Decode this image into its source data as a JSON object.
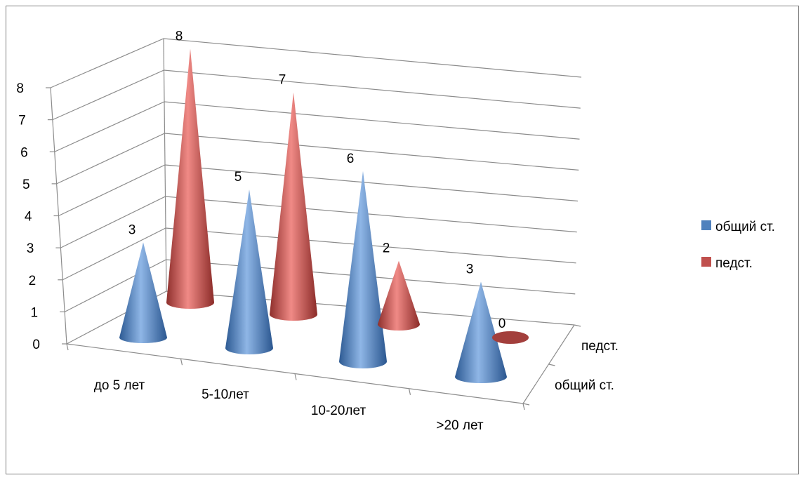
{
  "chart_data": {
    "type": "bar",
    "subtype": "3d-cone",
    "categories": [
      "до 5 лет",
      "5-10лет",
      "10-20лет",
      ">20 лет"
    ],
    "series": [
      {
        "name": "общий ст.",
        "values": [
          3,
          5,
          6,
          3
        ],
        "color": "#4f81bd"
      },
      {
        "name": "педст.",
        "values": [
          8,
          7,
          2,
          0
        ],
        "color": "#c0504d"
      }
    ],
    "depth_labels": [
      "педст.",
      "общий ст."
    ],
    "y_ticks": [
      "0",
      "1",
      "2",
      "3",
      "4",
      "5",
      "6",
      "7",
      "8"
    ],
    "ylim": [
      0,
      8
    ],
    "grid": true,
    "legend": "right",
    "data_labels": true
  }
}
